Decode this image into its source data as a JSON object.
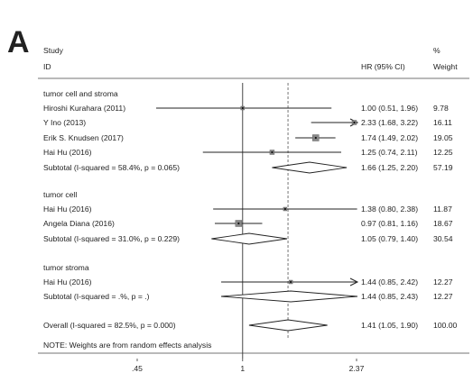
{
  "panel_label": "A",
  "headers": {
    "study": "Study",
    "id": "ID",
    "hr": "HR (95% CI)",
    "pct": "%",
    "weight": "Weight"
  },
  "note": "NOTE: Weights are from random effects analysis",
  "chart_data": {
    "type": "forest",
    "xscale": "log",
    "xlim": [
      0.45,
      2.37
    ],
    "xticks": [
      0.45,
      1,
      2.37
    ],
    "xtick_labels": [
      ".45",
      "1",
      "2.37"
    ],
    "null_line": 1,
    "overall_line": 1.41,
    "groups": [
      {
        "name": "tumor cell and stroma",
        "studies": [
          {
            "label": "Hiroshi Kurahara (2011)",
            "hr": 1.0,
            "lo": 0.51,
            "hi": 1.96,
            "ci_text": "1.00 (0.51, 1.96)",
            "weight": "9.78",
            "box_size": 2
          },
          {
            "label": "Y Ino (2013)",
            "hr": 2.33,
            "lo": 1.68,
            "hi": 3.22,
            "ci_text": "2.33 (1.68, 3.22)",
            "weight": "16.11",
            "box_size": 3
          },
          {
            "label": "Erik S. Knudsen (2017)",
            "hr": 1.74,
            "lo": 1.49,
            "hi": 2.02,
            "ci_text": "1.74 (1.49, 2.02)",
            "weight": "19.05",
            "box_size": 5
          },
          {
            "label": "Hai Hu (2016)",
            "hr": 1.25,
            "lo": 0.74,
            "hi": 2.11,
            "ci_text": "1.25 (0.74, 2.11)",
            "weight": "12.25",
            "box_size": 3
          }
        ],
        "subtotal": {
          "label": "Subtotal  (I-squared = 58.4%, p = 0.065)",
          "hr": 1.66,
          "lo": 1.25,
          "hi": 2.2,
          "ci_text": "1.66 (1.25, 2.20)",
          "weight": "57.19"
        }
      },
      {
        "name": "tumor cell",
        "studies": [
          {
            "label": "Hai Hu (2016)",
            "hr": 1.38,
            "lo": 0.8,
            "hi": 2.38,
            "ci_text": "1.38 (0.80, 2.38)",
            "weight": "11.87",
            "box_size": 2
          },
          {
            "label": "Angela Diana (2016)",
            "hr": 0.97,
            "lo": 0.81,
            "hi": 1.16,
            "ci_text": "0.97 (0.81, 1.16)",
            "weight": "18.67",
            "box_size": 5
          }
        ],
        "subtotal": {
          "label": "Subtotal  (I-squared = 31.0%, p = 0.229)",
          "hr": 1.05,
          "lo": 0.79,
          "hi": 1.4,
          "ci_text": "1.05 (0.79, 1.40)",
          "weight": "30.54"
        }
      },
      {
        "name": "tumor stroma",
        "studies": [
          {
            "label": "Hai Hu (2016)",
            "hr": 1.44,
            "lo": 0.85,
            "hi": 2.42,
            "ci_text": "1.44 (0.85, 2.42)",
            "weight": "12.27",
            "box_size": 2
          }
        ],
        "subtotal": {
          "label": "Subtotal  (I-squared = .%, p = .)",
          "hr": 1.44,
          "lo": 0.85,
          "hi": 2.43,
          "ci_text": "1.44 (0.85, 2.43)",
          "weight": "12.27"
        }
      }
    ],
    "overall": {
      "label": "Overall  (I-squared = 82.5%, p = 0.000)",
      "hr": 1.41,
      "lo": 1.05,
      "hi": 1.9,
      "ci_text": "1.41 (1.05, 1.90)",
      "weight": "100.00"
    }
  }
}
